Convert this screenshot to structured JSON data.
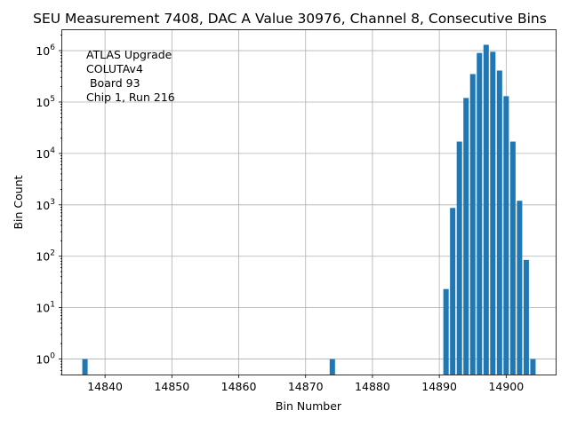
{
  "chart_data": {
    "type": "bar",
    "title": "SEU Measurement 7408, DAC A Value 30976, Channel 8, Consecutive Bins",
    "xlabel": "Bin Number",
    "ylabel": "Bin Count",
    "yscale": "log",
    "xlim": [
      14833.6,
      14907.4
    ],
    "ylim": [
      0.5,
      2500000
    ],
    "grid": true,
    "bar_color": "#1f77b4",
    "x_ticks": [
      14840,
      14850,
      14860,
      14870,
      14880,
      14890,
      14900
    ],
    "x_tick_labels": [
      "14840",
      "14850",
      "14860",
      "14870",
      "14880",
      "14890",
      "14900"
    ],
    "y_ticks": [
      {
        "value": 1,
        "base": "10",
        "exp": "0"
      },
      {
        "value": 10,
        "base": "10",
        "exp": "1"
      },
      {
        "value": 100,
        "base": "10",
        "exp": "2"
      },
      {
        "value": 1000,
        "base": "10",
        "exp": "3"
      },
      {
        "value": 10000,
        "base": "10",
        "exp": "4"
      },
      {
        "value": 100000,
        "base": "10",
        "exp": "5"
      },
      {
        "value": 1000000,
        "base": "10",
        "exp": "6"
      }
    ],
    "annotation": [
      "ATLAS Upgrade",
      "COLUTAv4",
      " Board 93",
      "Chip 1, Run 216"
    ],
    "bins": [
      {
        "x": 14837,
        "count": 1
      },
      {
        "x": 14874,
        "count": 1
      },
      {
        "x": 14891,
        "count": 23
      },
      {
        "x": 14892,
        "count": 870
      },
      {
        "x": 14893,
        "count": 17000
      },
      {
        "x": 14894,
        "count": 120000
      },
      {
        "x": 14895,
        "count": 350000
      },
      {
        "x": 14896,
        "count": 900000
      },
      {
        "x": 14897,
        "count": 1300000
      },
      {
        "x": 14898,
        "count": 950000
      },
      {
        "x": 14899,
        "count": 410000
      },
      {
        "x": 14900,
        "count": 130000
      },
      {
        "x": 14901,
        "count": 17000
      },
      {
        "x": 14902,
        "count": 1200
      },
      {
        "x": 14903,
        "count": 85
      },
      {
        "x": 14904,
        "count": 1
      }
    ]
  }
}
